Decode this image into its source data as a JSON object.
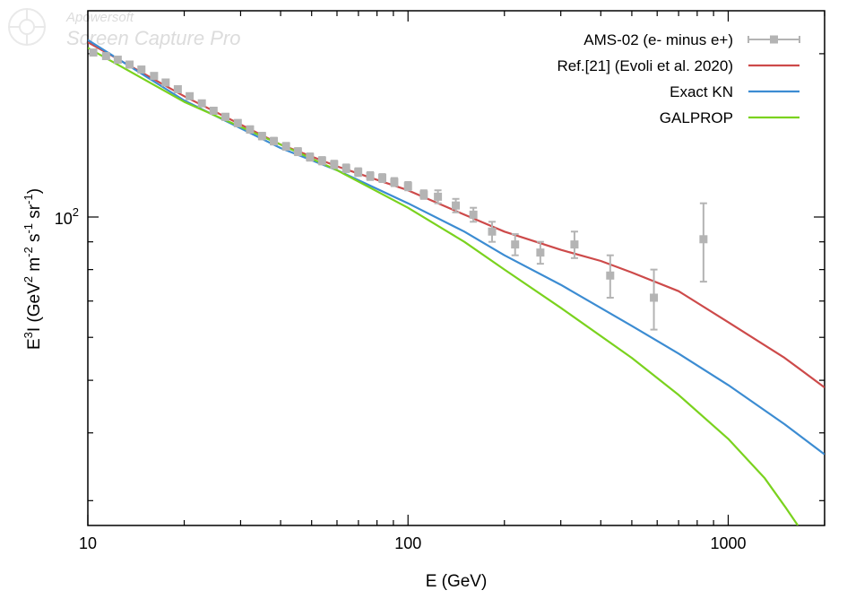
{
  "watermark": {
    "line1": "Apowersoft",
    "line2": "Screen Capture Pro"
  },
  "chart_data": {
    "type": "line",
    "xscale": "log",
    "yscale": "log",
    "xlim": [
      10,
      2000
    ],
    "ylim": [
      27,
      240
    ],
    "xlabel": "E (GeV)",
    "ylabel": "E^3 I (GeV^2 m^-2 s^-1 sr^-1)",
    "xticks": [
      {
        "value": 10,
        "label": "10"
      },
      {
        "value": 100,
        "label": "100"
      },
      {
        "value": 1000,
        "label": "1000"
      }
    ],
    "yticks": [
      {
        "value": 100,
        "label": "10",
        "sup": "2"
      }
    ],
    "legend_position": "top-right",
    "series": [
      {
        "name": "AMS-02 (e- minus e+)",
        "kind": "points",
        "color": "#b4b4b4",
        "points": [
          {
            "x": 10.4,
            "y": 201,
            "err": 2
          },
          {
            "x": 11.4,
            "y": 198,
            "err": 2
          },
          {
            "x": 12.4,
            "y": 195,
            "err": 2
          },
          {
            "x": 13.5,
            "y": 191,
            "err": 2
          },
          {
            "x": 14.7,
            "y": 187,
            "err": 2
          },
          {
            "x": 16.1,
            "y": 182,
            "err": 2
          },
          {
            "x": 17.5,
            "y": 177,
            "err": 2
          },
          {
            "x": 19.1,
            "y": 172,
            "err": 2
          },
          {
            "x": 20.8,
            "y": 167,
            "err": 2
          },
          {
            "x": 22.7,
            "y": 162,
            "err": 2
          },
          {
            "x": 24.7,
            "y": 157,
            "err": 2
          },
          {
            "x": 26.9,
            "y": 153,
            "err": 2
          },
          {
            "x": 29.4,
            "y": 149,
            "err": 2
          },
          {
            "x": 32.1,
            "y": 145,
            "err": 2
          },
          {
            "x": 35.0,
            "y": 141,
            "err": 2
          },
          {
            "x": 38.1,
            "y": 138,
            "err": 2
          },
          {
            "x": 41.6,
            "y": 135,
            "err": 2
          },
          {
            "x": 45.3,
            "y": 132,
            "err": 2
          },
          {
            "x": 49.4,
            "y": 129,
            "err": 2
          },
          {
            "x": 53.9,
            "y": 127,
            "err": 2
          },
          {
            "x": 58.8,
            "y": 125,
            "err": 2
          },
          {
            "x": 64.1,
            "y": 123,
            "err": 2
          },
          {
            "x": 69.9,
            "y": 121,
            "err": 2
          },
          {
            "x": 76.2,
            "y": 119,
            "err": 2
          },
          {
            "x": 83.1,
            "y": 118,
            "err": 2
          },
          {
            "x": 90.6,
            "y": 116,
            "err": 2
          },
          {
            "x": 100,
            "y": 114,
            "err": 2
          },
          {
            "x": 112,
            "y": 110,
            "err": 2
          },
          {
            "x": 124,
            "y": 109,
            "err": 3
          },
          {
            "x": 141,
            "y": 105,
            "err": 3
          },
          {
            "x": 160,
            "y": 101,
            "err": 3
          },
          {
            "x": 183,
            "y": 94,
            "err": 4
          },
          {
            "x": 216,
            "y": 89,
            "err": 4
          },
          {
            "x": 259,
            "y": 86,
            "err": 4
          },
          {
            "x": 331,
            "y": 89,
            "err": 5
          },
          {
            "x": 428,
            "y": 78,
            "err": 7
          },
          {
            "x": 586,
            "y": 71,
            "err": 9
          },
          {
            "x": 837,
            "y": 91,
            "err": 15
          }
        ]
      },
      {
        "name": "Ref.[21] (Evoli et al. 2020)",
        "kind": "line",
        "color": "#cd4a4a",
        "points": [
          {
            "x": 10,
            "y": 210
          },
          {
            "x": 20,
            "y": 167
          },
          {
            "x": 40,
            "y": 136
          },
          {
            "x": 60,
            "y": 124
          },
          {
            "x": 100,
            "y": 112
          },
          {
            "x": 150,
            "y": 101
          },
          {
            "x": 200,
            "y": 94
          },
          {
            "x": 300,
            "y": 87
          },
          {
            "x": 400,
            "y": 83
          },
          {
            "x": 500,
            "y": 79
          },
          {
            "x": 700,
            "y": 73
          },
          {
            "x": 1000,
            "y": 64
          },
          {
            "x": 1500,
            "y": 55
          },
          {
            "x": 2000,
            "y": 48.5
          }
        ]
      },
      {
        "name": "Exact KN",
        "kind": "line",
        "color": "#3c8cd2",
        "points": [
          {
            "x": 10,
            "y": 212
          },
          {
            "x": 20,
            "y": 164
          },
          {
            "x": 40,
            "y": 134
          },
          {
            "x": 60,
            "y": 122
          },
          {
            "x": 100,
            "y": 106
          },
          {
            "x": 150,
            "y": 94
          },
          {
            "x": 200,
            "y": 85
          },
          {
            "x": 300,
            "y": 75
          },
          {
            "x": 500,
            "y": 63
          },
          {
            "x": 700,
            "y": 56
          },
          {
            "x": 1000,
            "y": 49
          },
          {
            "x": 1500,
            "y": 41.5
          },
          {
            "x": 2000,
            "y": 36.5
          }
        ]
      },
      {
        "name": "GALPROP",
        "kind": "line",
        "color": "#7ad21e",
        "points": [
          {
            "x": 10,
            "y": 205
          },
          {
            "x": 20,
            "y": 163
          },
          {
            "x": 40,
            "y": 136
          },
          {
            "x": 60,
            "y": 122
          },
          {
            "x": 100,
            "y": 104
          },
          {
            "x": 150,
            "y": 90
          },
          {
            "x": 200,
            "y": 80
          },
          {
            "x": 300,
            "y": 68
          },
          {
            "x": 500,
            "y": 55
          },
          {
            "x": 700,
            "y": 47
          },
          {
            "x": 1000,
            "y": 39
          },
          {
            "x": 1300,
            "y": 33
          },
          {
            "x": 1520,
            "y": 29
          },
          {
            "x": 1650,
            "y": 27
          }
        ]
      }
    ]
  }
}
